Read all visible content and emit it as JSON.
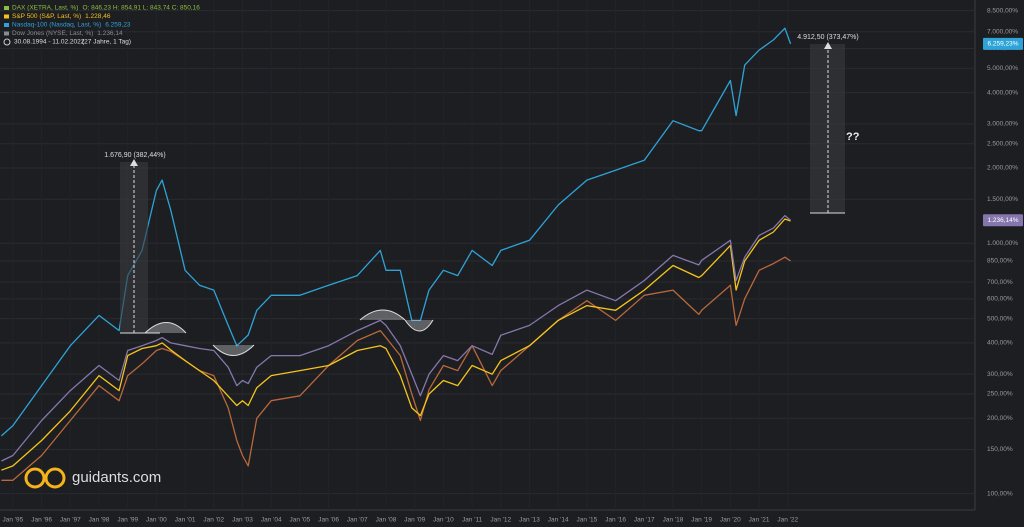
{
  "chart_data": {
    "type": "line",
    "yscale": "log",
    "grid": true,
    "x": [
      1994.6,
      1995,
      1996,
      1997,
      1998,
      1998.7,
      1999,
      1999.5,
      2000,
      2000.2,
      2000.5,
      2001,
      2001.5,
      2002,
      2002.5,
      2002.8,
      2003,
      2003.2,
      2003.5,
      2004,
      2005,
      2006,
      2007,
      2007.8,
      2008,
      2008.5,
      2008.9,
      2009.2,
      2009.5,
      2010,
      2010.5,
      2011,
      2011.7,
      2012,
      2013,
      2014,
      2015,
      2016,
      2017,
      2018,
      2018.9,
      2019,
      2020,
      2020.2,
      2020.5,
      2021,
      2021.5,
      2021.9,
      2022.1
    ],
    "xlim": [
      1994.55,
      2028.35
    ],
    "xticks": [
      {
        "value": 1995,
        "label": "Jan '95"
      },
      {
        "value": 1996,
        "label": "Jan '96"
      },
      {
        "value": 1997,
        "label": "Jan '97"
      },
      {
        "value": 1998,
        "label": "Jan '98"
      },
      {
        "value": 1999,
        "label": "Jan '99"
      },
      {
        "value": 2000,
        "label": "Jan '00"
      },
      {
        "value": 2001,
        "label": "Jan '01"
      },
      {
        "value": 2002,
        "label": "Jan '02"
      },
      {
        "value": 2003,
        "label": "Jan '03"
      },
      {
        "value": 2004,
        "label": "Jan '04"
      },
      {
        "value": 2005,
        "label": "Jan '05"
      },
      {
        "value": 2006,
        "label": "Jan '06"
      },
      {
        "value": 2007,
        "label": "Jan '07"
      },
      {
        "value": 2008,
        "label": "Jan '08"
      },
      {
        "value": 2009,
        "label": "Jan '09"
      },
      {
        "value": 2010,
        "label": "Jan '10"
      },
      {
        "value": 2011,
        "label": "Jan '11"
      },
      {
        "value": 2012,
        "label": "Jan '12"
      },
      {
        "value": 2013,
        "label": "Jan '13"
      },
      {
        "value": 2014,
        "label": "Jan '14"
      },
      {
        "value": 2015,
        "label": "Jan '15"
      },
      {
        "value": 2016,
        "label": "Jan '16"
      },
      {
        "value": 2017,
        "label": "Jan '17"
      },
      {
        "value": 2018,
        "label": "Jan '18"
      },
      {
        "value": 2019,
        "label": "Jan '19"
      },
      {
        "value": 2020,
        "label": "Jan '20"
      },
      {
        "value": 2021,
        "label": "Jan '21"
      },
      {
        "value": 2022,
        "label": "Jan '22"
      }
    ],
    "ylim": [
      86,
      9376
    ],
    "yticks": [
      {
        "value": 100,
        "label": "100,00%"
      },
      {
        "value": 150,
        "label": "150,00%"
      },
      {
        "value": 200,
        "label": "200,00%"
      },
      {
        "value": 250,
        "label": "250,00%"
      },
      {
        "value": 300,
        "label": "300,00%"
      },
      {
        "value": 400,
        "label": "400,00%"
      },
      {
        "value": 500,
        "label": "500,00%"
      },
      {
        "value": 600,
        "label": "600,00%"
      },
      {
        "value": 700,
        "label": "700,00%"
      },
      {
        "value": 850,
        "label": "850,00%"
      },
      {
        "value": 1000,
        "label": "1.000,00%"
      },
      {
        "value": 1500,
        "label": "1.500,00%"
      },
      {
        "value": 2000,
        "label": "2.000,00%"
      },
      {
        "value": 2500,
        "label": "2.500,00%"
      },
      {
        "value": 3000,
        "label": "3.000,00%"
      },
      {
        "value": 4000,
        "label": "4.000,00%"
      },
      {
        "value": 5000,
        "label": "5.000,00%"
      },
      {
        "value": 6000,
        "label": "6.000,00%"
      },
      {
        "value": 7000,
        "label": "7.000,00%"
      },
      {
        "value": 8500,
        "label": "8.500,00%"
      }
    ],
    "series": [
      {
        "name": "DAX (XETRA, Last, %)",
        "legend_values": "O: 846,23  H: 854,91  L: 843,74  C: 850,16",
        "legend_color": "#8cbf3f",
        "color": "#b8683a",
        "values": [
          113,
          113,
          142,
          196,
          270,
          235,
          296,
          330,
          373,
          380,
          370,
          340,
          310,
          296,
          220,
          163,
          142,
          129,
          200,
          235,
          246,
          325,
          409,
          448,
          420,
          356,
          250,
          196,
          260,
          325,
          310,
          390,
          270,
          310,
          390,
          492,
          590,
          492,
          620,
          650,
          520,
          540,
          680,
          470,
          600,
          780,
          830,
          880,
          850
        ]
      },
      {
        "name": "S&P 500 (S&P, Last, %)",
        "legend_values": "1.228,46",
        "legend_color": "#f2c21a",
        "color": "#f5c518",
        "values": [
          124,
          129,
          163,
          214,
          296,
          258,
          356,
          380,
          390,
          400,
          375,
          340,
          310,
          283,
          245,
          225,
          235,
          225,
          265,
          296,
          310,
          325,
          373,
          390,
          380,
          296,
          220,
          205,
          250,
          283,
          270,
          325,
          300,
          340,
          390,
          492,
          564,
          540,
          650,
          815,
          730,
          743,
          981,
          650,
          850,
          1028,
          1110,
          1250,
          1228
        ]
      },
      {
        "name": "Nasdaq-100 (Nasdaq, Last, %)",
        "legend_values": "6.259,23",
        "legend_color": "#2ea3d8",
        "color": "#2ea3d8",
        "values": [
          170,
          187,
          270,
          390,
          515,
          448,
          743,
          937,
          1627,
          1788,
          1355,
          780,
          680,
          650,
          470,
          390,
          409,
          430,
          540,
          620,
          620,
          680,
          743,
          937,
          780,
          780,
          492,
          492,
          650,
          780,
          743,
          937,
          815,
          937,
          1028,
          1422,
          1788,
          1958,
          2147,
          3090,
          2818,
          2818,
          4472,
          3236,
          5152,
          5916,
          6494,
          7236,
          6259
        ]
      },
      {
        "name": "Dow Jones (NYSE, Last, %)",
        "legend_values": "1.236,14",
        "legend_color": "#8a8a8f",
        "color": "#8576ad",
        "values": [
          135,
          142,
          196,
          258,
          325,
          283,
          373,
          390,
          409,
          420,
          400,
          390,
          380,
          373,
          320,
          270,
          283,
          275,
          320,
          356,
          356,
          390,
          448,
          492,
          470,
          390,
          300,
          246,
          300,
          356,
          340,
          390,
          360,
          429,
          470,
          564,
          650,
          590,
          710,
          895,
          820,
          855,
          1028,
          710,
          880,
          1075,
          1150,
          1290,
          1236
        ]
      }
    ],
    "last_labels": [
      {
        "text": "6.259,23%",
        "color": "#2ea3d8",
        "value": 6259
      },
      {
        "text": "1.236,14%",
        "color": "#8576ad",
        "value": 1236
      }
    ],
    "period": "30.08.1994 - 11.02.2022",
    "period_length": "(27 Jahre, 1 Tag)",
    "annotations": [
      "1.676,90 (382,44%)",
      "4.912,50 (373,47%)",
      "??"
    ],
    "brand": "guidants.com"
  }
}
